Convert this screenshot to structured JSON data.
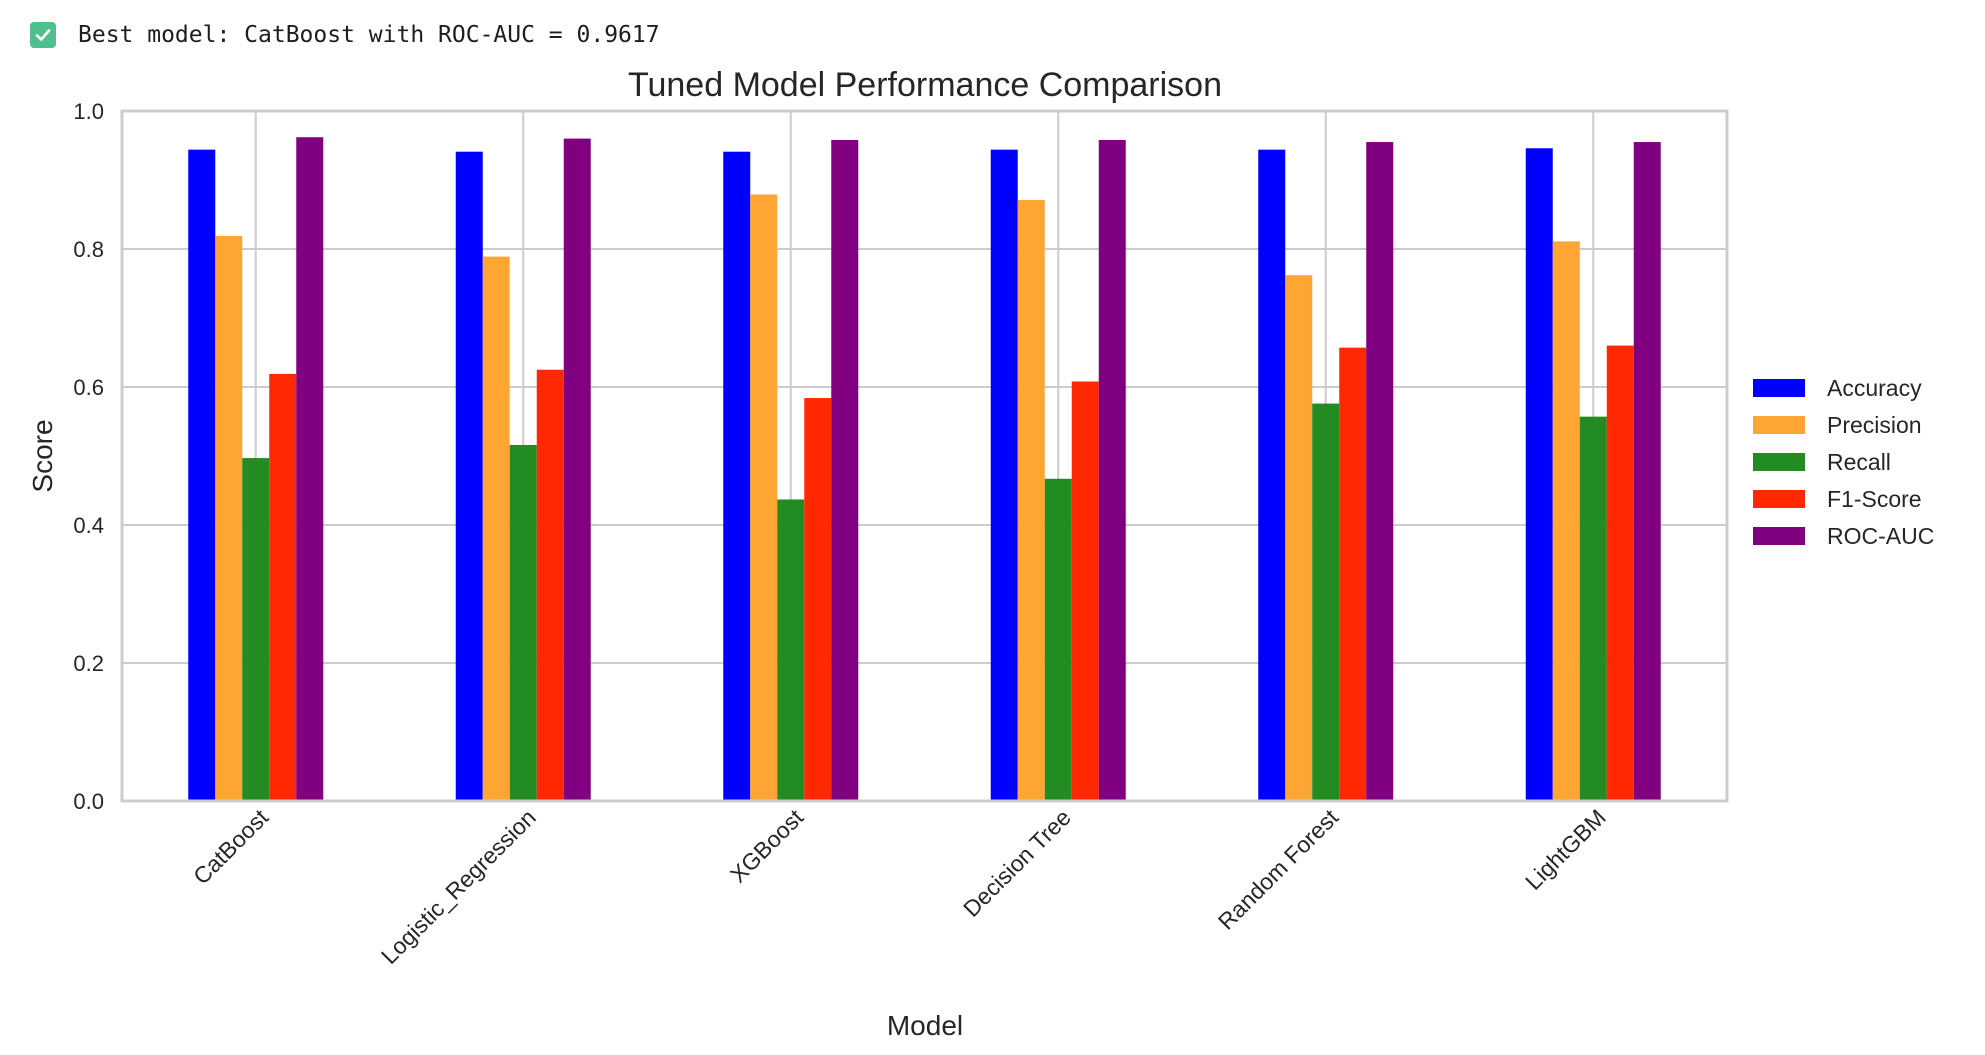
{
  "output": {
    "icon": "check-mark-icon",
    "text": "Best model: CatBoost with ROC-AUC = 0.9617"
  },
  "chart_data": {
    "type": "bar",
    "title": "Tuned Model Performance Comparison",
    "xlabel": "Model",
    "ylabel": "Score",
    "ylim": [
      0,
      1.0
    ],
    "yticks": [
      0.0,
      0.2,
      0.4,
      0.6,
      0.8,
      1.0
    ],
    "ytick_labels": [
      "0.0",
      "0.2",
      "0.4",
      "0.6",
      "0.8",
      "1.0"
    ],
    "grid": true,
    "legend_position": "right-center",
    "categories": [
      "CatBoost",
      "Logistic_Regression",
      "XGBoost",
      "Decision Tree",
      "Random Forest",
      "LightGBM"
    ],
    "series": [
      {
        "name": "Accuracy",
        "color": "#0000ff",
        "values": [
          0.944,
          0.941,
          0.941,
          0.944,
          0.944,
          0.946
        ]
      },
      {
        "name": "Precision",
        "color": "#ffa534",
        "values": [
          0.819,
          0.789,
          0.879,
          0.871,
          0.762,
          0.811
        ]
      },
      {
        "name": "Recall",
        "color": "#228b22",
        "values": [
          0.497,
          0.516,
          0.437,
          0.467,
          0.576,
          0.557
        ]
      },
      {
        "name": "F1-Score",
        "color": "#ff2800",
        "values": [
          0.619,
          0.625,
          0.584,
          0.608,
          0.657,
          0.66
        ]
      },
      {
        "name": "ROC-AUC",
        "color": "#800080",
        "values": [
          0.962,
          0.96,
          0.958,
          0.958,
          0.955,
          0.955
        ]
      }
    ]
  }
}
